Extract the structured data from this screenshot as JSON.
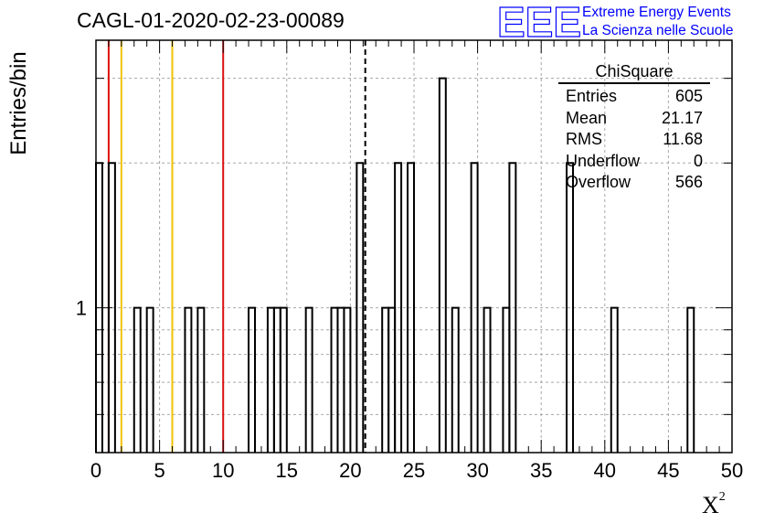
{
  "header": {
    "run_title": "CAGL-01-2020-02-23-00089"
  },
  "logo": {
    "mark": "EEE",
    "line1": "Extreme Energy Events",
    "line2": "La Scienza nelle Scuole",
    "color": "#0000ff"
  },
  "stats_box": {
    "title": "ChiSquare",
    "rows": [
      {
        "label": "Entries",
        "value": "605"
      },
      {
        "label": "Mean",
        "value": "21.17"
      },
      {
        "label": "RMS",
        "value": "11.68"
      },
      {
        "label": "Underflow",
        "value": "0"
      },
      {
        "label": "Overflow",
        "value": "566"
      }
    ]
  },
  "chart_data": {
    "type": "histogram",
    "title": "CAGL-01-2020-02-23-00089",
    "xlabel": "X",
    "xlabel_superscript": "2",
    "ylabel": "Entries/bin",
    "y_scale": "log",
    "xlim": [
      0,
      50
    ],
    "ylim": [
      0.5,
      3.6
    ],
    "x_ticks": [
      0,
      5,
      10,
      15,
      20,
      25,
      30,
      35,
      40,
      45,
      50
    ],
    "y_tick_labels": [
      {
        "value": 1,
        "label": "1"
      }
    ],
    "grid": true,
    "bin_width": 0.5,
    "bins": [
      {
        "x": 0.0,
        "count": 2
      },
      {
        "x": 1.0,
        "count": 2
      },
      {
        "x": 3.0,
        "count": 1
      },
      {
        "x": 4.0,
        "count": 1
      },
      {
        "x": 7.0,
        "count": 1
      },
      {
        "x": 8.0,
        "count": 1
      },
      {
        "x": 12.0,
        "count": 1
      },
      {
        "x": 13.5,
        "count": 1
      },
      {
        "x": 14.0,
        "count": 1
      },
      {
        "x": 14.5,
        "count": 1
      },
      {
        "x": 16.5,
        "count": 1
      },
      {
        "x": 18.5,
        "count": 1
      },
      {
        "x": 19.0,
        "count": 1
      },
      {
        "x": 19.5,
        "count": 1
      },
      {
        "x": 20.5,
        "count": 2
      },
      {
        "x": 22.5,
        "count": 1
      },
      {
        "x": 23.0,
        "count": 1
      },
      {
        "x": 23.5,
        "count": 2
      },
      {
        "x": 24.5,
        "count": 2
      },
      {
        "x": 27.0,
        "count": 3
      },
      {
        "x": 28.0,
        "count": 1
      },
      {
        "x": 29.5,
        "count": 2
      },
      {
        "x": 30.5,
        "count": 1
      },
      {
        "x": 32.0,
        "count": 1
      },
      {
        "x": 32.5,
        "count": 2
      },
      {
        "x": 37.0,
        "count": 2
      },
      {
        "x": 40.5,
        "count": 1
      },
      {
        "x": 46.5,
        "count": 1
      }
    ],
    "vertical_lines": [
      {
        "x": 1,
        "color": "#dd1111",
        "style": "solid"
      },
      {
        "x": 2,
        "color": "#f2c200",
        "style": "solid"
      },
      {
        "x": 6,
        "color": "#f2c200",
        "style": "solid"
      },
      {
        "x": 10,
        "color": "#dd1111",
        "style": "solid"
      },
      {
        "x": 21.17,
        "color": "#000000",
        "style": "dashed"
      }
    ]
  }
}
